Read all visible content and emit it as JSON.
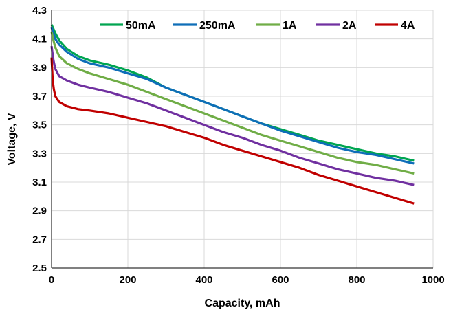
{
  "chart_data": {
    "type": "line",
    "title": "",
    "xlabel": "Capacity, mAh",
    "ylabel": "Voltage, V",
    "xlim": [
      0,
      1000
    ],
    "ylim": [
      2.5,
      4.3
    ],
    "xticks": [
      "0",
      "200",
      "400",
      "600",
      "800",
      "1000"
    ],
    "yticks": [
      "2.5",
      "2.7",
      "2.9",
      "3.1",
      "3.3",
      "3.5",
      "3.7",
      "3.9",
      "4.1",
      "4.3"
    ],
    "grid": true,
    "legend_position": "top",
    "series": [
      {
        "name": "50mA",
        "color": "#00A550",
        "x": [
          0,
          5,
          10,
          20,
          40,
          70,
          100,
          150,
          200,
          250,
          300,
          350,
          400,
          450,
          500,
          550,
          600,
          650,
          700,
          750,
          800,
          850,
          900,
          950
        ],
        "y": [
          4.2,
          4.17,
          4.14,
          4.09,
          4.03,
          3.98,
          3.95,
          3.92,
          3.88,
          3.83,
          3.76,
          3.71,
          3.66,
          3.61,
          3.56,
          3.51,
          3.47,
          3.43,
          3.39,
          3.36,
          3.33,
          3.3,
          3.28,
          3.25
        ]
      },
      {
        "name": "250mA",
        "color": "#0E6EB8",
        "x": [
          0,
          5,
          10,
          20,
          40,
          70,
          100,
          150,
          200,
          250,
          300,
          350,
          400,
          450,
          500,
          550,
          600,
          650,
          700,
          750,
          800,
          850,
          900,
          950
        ],
        "y": [
          4.18,
          4.14,
          4.1,
          4.06,
          4.01,
          3.96,
          3.93,
          3.9,
          3.86,
          3.82,
          3.76,
          3.71,
          3.66,
          3.61,
          3.56,
          3.51,
          3.46,
          3.42,
          3.38,
          3.34,
          3.31,
          3.29,
          3.26,
          3.23
        ]
      },
      {
        "name": "1A",
        "color": "#70AD47",
        "x": [
          0,
          5,
          10,
          20,
          40,
          70,
          100,
          150,
          200,
          250,
          300,
          350,
          400,
          450,
          500,
          550,
          600,
          650,
          700,
          750,
          800,
          850,
          900,
          950
        ],
        "y": [
          4.15,
          4.09,
          4.04,
          3.98,
          3.93,
          3.89,
          3.86,
          3.82,
          3.78,
          3.73,
          3.68,
          3.63,
          3.58,
          3.53,
          3.48,
          3.43,
          3.39,
          3.35,
          3.31,
          3.27,
          3.24,
          3.22,
          3.19,
          3.16
        ]
      },
      {
        "name": "2A",
        "color": "#7030A0",
        "x": [
          0,
          5,
          10,
          20,
          40,
          70,
          100,
          150,
          200,
          250,
          300,
          350,
          400,
          450,
          500,
          550,
          600,
          650,
          700,
          750,
          800,
          850,
          900,
          950
        ],
        "y": [
          4.05,
          3.95,
          3.89,
          3.84,
          3.81,
          3.78,
          3.76,
          3.73,
          3.69,
          3.65,
          3.6,
          3.55,
          3.5,
          3.45,
          3.41,
          3.36,
          3.32,
          3.27,
          3.23,
          3.19,
          3.16,
          3.13,
          3.11,
          3.08
        ]
      },
      {
        "name": "4A",
        "color": "#C00000",
        "x": [
          0,
          3,
          6,
          10,
          20,
          40,
          70,
          100,
          150,
          200,
          250,
          300,
          350,
          400,
          450,
          500,
          550,
          600,
          650,
          700,
          750,
          800,
          850,
          900,
          950
        ],
        "y": [
          3.97,
          3.81,
          3.75,
          3.7,
          3.66,
          3.63,
          3.61,
          3.6,
          3.58,
          3.55,
          3.52,
          3.49,
          3.45,
          3.41,
          3.36,
          3.32,
          3.28,
          3.24,
          3.2,
          3.15,
          3.11,
          3.07,
          3.03,
          2.99,
          2.95
        ]
      }
    ]
  }
}
